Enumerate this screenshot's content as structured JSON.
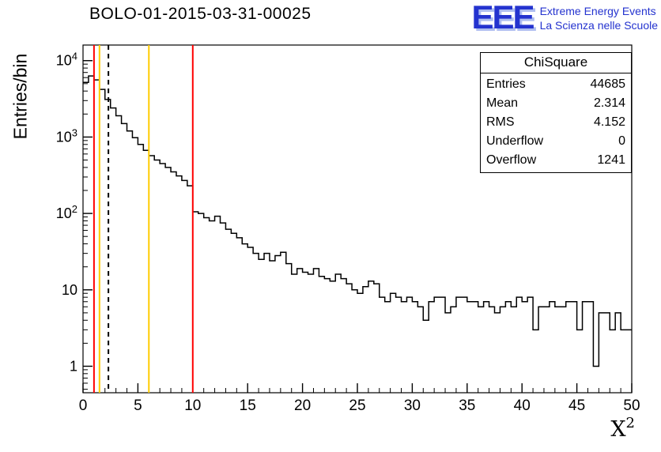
{
  "logo": {
    "letters": "EEE",
    "line1": "Extreme Energy Events",
    "line2": "La Scienza nelle Scuole",
    "color": "#2433cf"
  },
  "stats": {
    "title": "ChiSquare",
    "rows": [
      {
        "label": "Entries",
        "value": "44685"
      },
      {
        "label": "Mean",
        "value": "2.314"
      },
      {
        "label": "RMS",
        "value": "4.152"
      },
      {
        "label": "Underflow",
        "value": "0"
      },
      {
        "label": "Overflow",
        "value": "1241"
      }
    ]
  },
  "chart_data": {
    "type": "bar",
    "subtype": "step-histogram",
    "title": "BOLO-01-2015-03-31-00025",
    "xlabel": "X^2",
    "ylabel": "Entries/bin",
    "xlim": [
      0,
      50
    ],
    "ylim": [
      0.45,
      16000
    ],
    "y_log": true,
    "grid": false,
    "legend_position": "none",
    "line_color": "#000000",
    "x_major_ticks": [
      0,
      5,
      10,
      15,
      20,
      25,
      30,
      35,
      40,
      45,
      50
    ],
    "x_minor_step": 1,
    "y_major_ticks": [
      1,
      10,
      100,
      1000,
      10000
    ],
    "bin_start": 0,
    "bin_width": 0.5,
    "bins": [
      5200,
      6300,
      5600,
      4200,
      3100,
      2400,
      1900,
      1500,
      1200,
      980,
      800,
      670,
      570,
      500,
      450,
      400,
      350,
      310,
      270,
      230,
      105,
      100,
      88,
      80,
      92,
      75,
      62,
      55,
      48,
      40,
      36,
      30,
      25,
      30,
      24,
      28,
      31,
      22,
      16,
      19,
      17,
      16,
      19,
      15,
      14,
      13,
      16,
      14,
      12,
      10,
      9,
      11,
      13,
      12,
      8,
      7,
      9,
      8,
      7,
      8,
      7,
      6,
      4,
      7,
      8,
      8,
      5,
      6,
      8,
      8,
      7,
      7,
      6,
      7,
      6,
      5,
      6,
      7,
      6,
      8,
      7,
      8,
      3,
      6,
      6,
      7,
      6,
      6,
      7,
      7,
      3,
      7,
      7,
      1,
      5,
      5,
      3,
      5,
      3,
      3
    ],
    "vlines": [
      {
        "x": 1.0,
        "color": "#ff0000",
        "style": "solid"
      },
      {
        "x": 1.5,
        "color": "#ffcc00",
        "style": "solid"
      },
      {
        "x": 2.314,
        "color": "#000000",
        "style": "dashed"
      },
      {
        "x": 6.0,
        "color": "#ffcc00",
        "style": "solid"
      },
      {
        "x": 10.0,
        "color": "#ff0000",
        "style": "solid"
      }
    ]
  }
}
